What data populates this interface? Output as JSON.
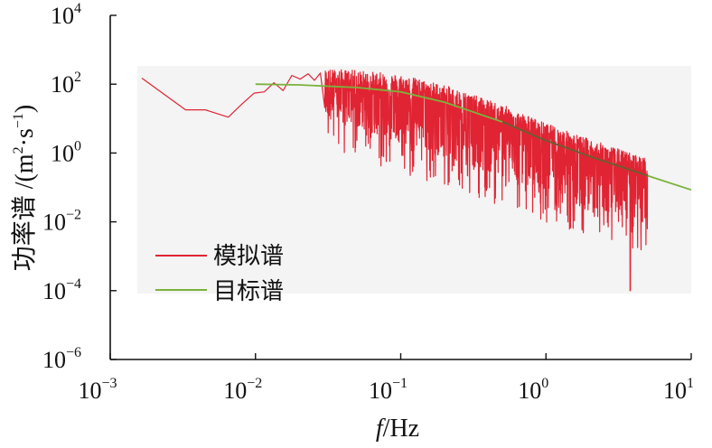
{
  "chart_data": {
    "type": "line",
    "x_scale": "log",
    "y_scale": "log",
    "xlim": [
      0.001,
      10
    ],
    "ylim": [
      1e-06,
      10000
    ],
    "x_ticks": [
      {
        "value": 0.001,
        "base": "10",
        "exp": "-3"
      },
      {
        "value": 0.01,
        "base": "10",
        "exp": "-2"
      },
      {
        "value": 0.1,
        "base": "10",
        "exp": "-1"
      },
      {
        "value": 1,
        "base": "10",
        "exp": "0"
      },
      {
        "value": 10,
        "base": "10",
        "exp": "1"
      }
    ],
    "y_ticks": [
      {
        "value": 10000,
        "base": "10",
        "exp": "4"
      },
      {
        "value": 100,
        "base": "10",
        "exp": "2"
      },
      {
        "value": 1,
        "base": "10",
        "exp": "0"
      },
      {
        "value": 0.01,
        "base": "10",
        "exp": "-2"
      },
      {
        "value": 0.0001,
        "base": "10",
        "exp": "-4"
      },
      {
        "value": 1e-06,
        "base": "10",
        "exp": "-6"
      }
    ],
    "x_axis": {
      "var": "f",
      "unit": "/Hz"
    },
    "y_axis": {
      "text": "功率谱 /(m",
      "sup1": "2",
      "mid": "·s",
      "sup2": "−1",
      "close": ")"
    },
    "legend_position": "lower-left",
    "series": [
      {
        "name": "模拟谱",
        "color": "#e02433",
        "x": [
          0.00165,
          0.0033,
          0.0045,
          0.0065,
          0.0081,
          0.0098,
          0.0115,
          0.0134,
          0.0155,
          0.0178,
          0.0203,
          0.023,
          0.0255,
          0.028
        ],
        "y": [
          150,
          18,
          18,
          11,
          27,
          55,
          60,
          110,
          65,
          180,
          140,
          200,
          130,
          210
        ],
        "noisy_segment": {
          "x_start": 0.03,
          "x_end": 5.0,
          "floor_start": 11,
          "floor_end": 0.008,
          "min_point": {
            "x": 3.8,
            "y": 0.0001
          }
        }
      },
      {
        "name": "目标谱",
        "color": "#7ab33c",
        "x": [
          0.01,
          0.02,
          0.05,
          0.1,
          0.2,
          0.5,
          1,
          2,
          5,
          10
        ],
        "y": [
          100,
          95,
          80,
          60,
          30,
          8,
          2.3,
          0.8,
          0.22,
          0.085
        ]
      }
    ]
  }
}
